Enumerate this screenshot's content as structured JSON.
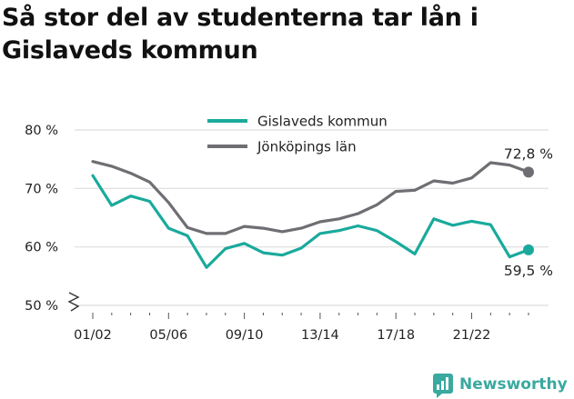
{
  "title": "Så stor del av studenterna tar lån i Gislaveds kommun",
  "brand": {
    "name": "Newsworthy",
    "color": "#3aa99f"
  },
  "chart_data": {
    "type": "line",
    "title": "Så stor del av studenterna tar lån i Gislaveds kommun",
    "xlabel": "",
    "ylabel": "",
    "ylim": [
      50,
      80
    ],
    "y_ticks": [
      50,
      60,
      70,
      80
    ],
    "y_tick_labels": [
      "50 %",
      "60 %",
      "70 %",
      "80 %"
    ],
    "y_axis_break": true,
    "grid": true,
    "legend_position": "top",
    "x": [
      "01/02",
      "02/03",
      "03/04",
      "04/05",
      "05/06",
      "06/07",
      "07/08",
      "08/09",
      "09/10",
      "10/11",
      "11/12",
      "12/13",
      "13/14",
      "14/15",
      "15/16",
      "16/17",
      "17/18",
      "18/19",
      "19/20",
      "20/21",
      "21/22",
      "22/23",
      "23/24",
      "24/25"
    ],
    "x_tick_labels": [
      "01/02",
      "05/06",
      "09/10",
      "13/14",
      "17/18",
      "21/22"
    ],
    "series": [
      {
        "name": "Gislaveds kommun",
        "color": "#1aaa9c",
        "values": [
          72.2,
          67.1,
          68.7,
          67.8,
          63.2,
          61.9,
          56.5,
          59.7,
          60.6,
          59.0,
          58.6,
          59.8,
          62.3,
          62.8,
          63.6,
          62.8,
          60.9,
          58.8,
          64.8,
          63.7,
          64.4,
          63.8,
          58.3,
          59.5
        ],
        "end_label": "59,5 %"
      },
      {
        "name": "Jönköpings län",
        "color": "#6e6e73",
        "values": [
          74.6,
          73.8,
          72.6,
          71.1,
          67.6,
          63.3,
          62.3,
          62.3,
          63.5,
          63.2,
          62.6,
          63.2,
          64.3,
          64.8,
          65.7,
          67.2,
          69.5,
          69.7,
          71.3,
          70.9,
          71.8,
          74.4,
          74.0,
          72.8
        ],
        "end_label": "72,8 %"
      }
    ]
  }
}
